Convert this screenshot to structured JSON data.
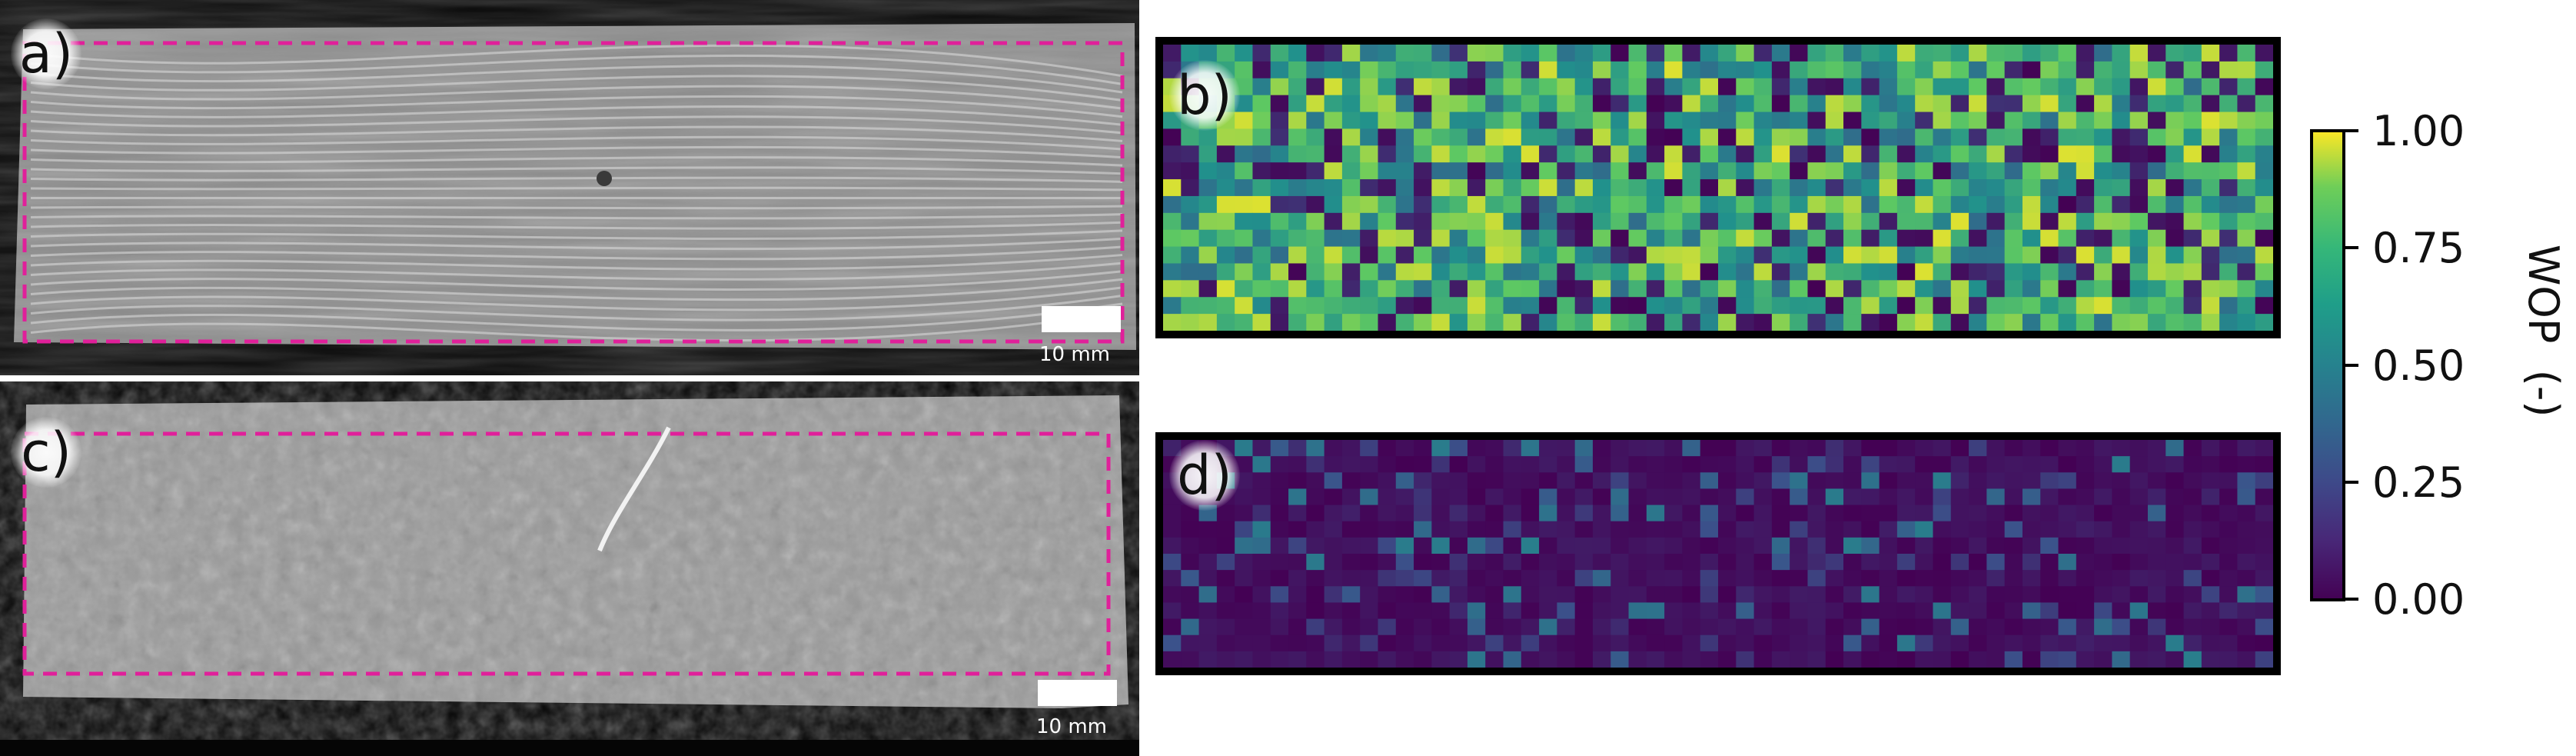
{
  "panels": [
    {
      "id": "a",
      "label": "a)",
      "scale_label": "10 mm"
    },
    {
      "id": "b",
      "label": "b)"
    },
    {
      "id": "c",
      "label": "c)",
      "scale_label": "10 mm"
    },
    {
      "id": "d",
      "label": "d)"
    }
  ],
  "colorbar": {
    "title": "WOP  (-)",
    "ticks": [
      "1.00",
      "0.75",
      "0.50",
      "0.25",
      "0.00"
    ],
    "colormap": "viridis",
    "range": [
      0.0,
      1.0
    ]
  },
  "colors": {
    "roi_outline": "#e0209a",
    "frame": "#000000",
    "viridis_low": "#440154",
    "viridis_mid": "#21918c",
    "viridis_high": "#fde725"
  }
}
